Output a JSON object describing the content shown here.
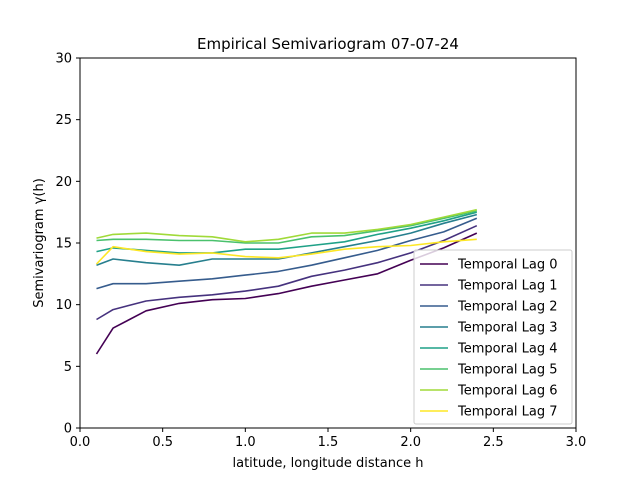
{
  "chart_data": {
    "type": "line",
    "title": "Empirical Semivariogram 07-07-24",
    "xlabel": "latitude, longitude distance h",
    "ylabel": "Semivariogram γ(h)",
    "xlim": [
      0.0,
      3.0
    ],
    "ylim": [
      0,
      30
    ],
    "xticks": [
      "0.0",
      "0.5",
      "1.0",
      "1.5",
      "2.0",
      "2.5",
      "3.0"
    ],
    "yticks": [
      "0",
      "5",
      "10",
      "15",
      "20",
      "25",
      "30"
    ],
    "grid": false,
    "legend_position": "lower-right",
    "x": [
      0.1,
      0.2,
      0.4,
      0.6,
      0.8,
      1.0,
      1.2,
      1.4,
      1.6,
      1.8,
      2.0,
      2.2,
      2.4
    ],
    "series": [
      {
        "name": "Temporal Lag 0",
        "color": "#440154",
        "values": [
          6.0,
          8.1,
          9.5,
          10.1,
          10.4,
          10.5,
          10.9,
          11.5,
          12.0,
          12.5,
          13.6,
          14.6,
          15.8
        ]
      },
      {
        "name": "Temporal Lag 1",
        "color": "#46327e",
        "values": [
          8.8,
          9.6,
          10.3,
          10.6,
          10.8,
          11.1,
          11.5,
          12.3,
          12.8,
          13.4,
          14.2,
          15.2,
          16.4
        ]
      },
      {
        "name": "Temporal Lag 2",
        "color": "#365c8d",
        "values": [
          11.3,
          11.7,
          11.7,
          11.9,
          12.1,
          12.4,
          12.7,
          13.2,
          13.8,
          14.4,
          15.2,
          15.9,
          17.0
        ]
      },
      {
        "name": "Temporal Lag 3",
        "color": "#277f8e",
        "values": [
          13.2,
          13.7,
          13.4,
          13.2,
          13.7,
          13.7,
          13.7,
          14.2,
          14.7,
          15.2,
          15.8,
          16.6,
          17.3
        ]
      },
      {
        "name": "Temporal Lag 4",
        "color": "#1fa187",
        "values": [
          14.3,
          14.6,
          14.4,
          14.2,
          14.2,
          14.5,
          14.5,
          14.8,
          15.1,
          15.7,
          16.2,
          16.8,
          17.5
        ]
      },
      {
        "name": "Temporal Lag 5",
        "color": "#4ac16d",
        "values": [
          15.2,
          15.3,
          15.3,
          15.2,
          15.2,
          15.0,
          15.0,
          15.5,
          15.6,
          16.0,
          16.4,
          17.0,
          17.6
        ]
      },
      {
        "name": "Temporal Lag 6",
        "color": "#a0da39",
        "values": [
          15.4,
          15.7,
          15.8,
          15.6,
          15.5,
          15.1,
          15.3,
          15.8,
          15.8,
          16.1,
          16.5,
          17.1,
          17.7
        ]
      },
      {
        "name": "Temporal Lag 7",
        "color": "#fde725",
        "values": [
          13.3,
          14.7,
          14.3,
          14.1,
          14.2,
          13.9,
          13.8,
          14.1,
          14.5,
          14.7,
          14.8,
          15.1,
          15.3
        ]
      }
    ]
  }
}
